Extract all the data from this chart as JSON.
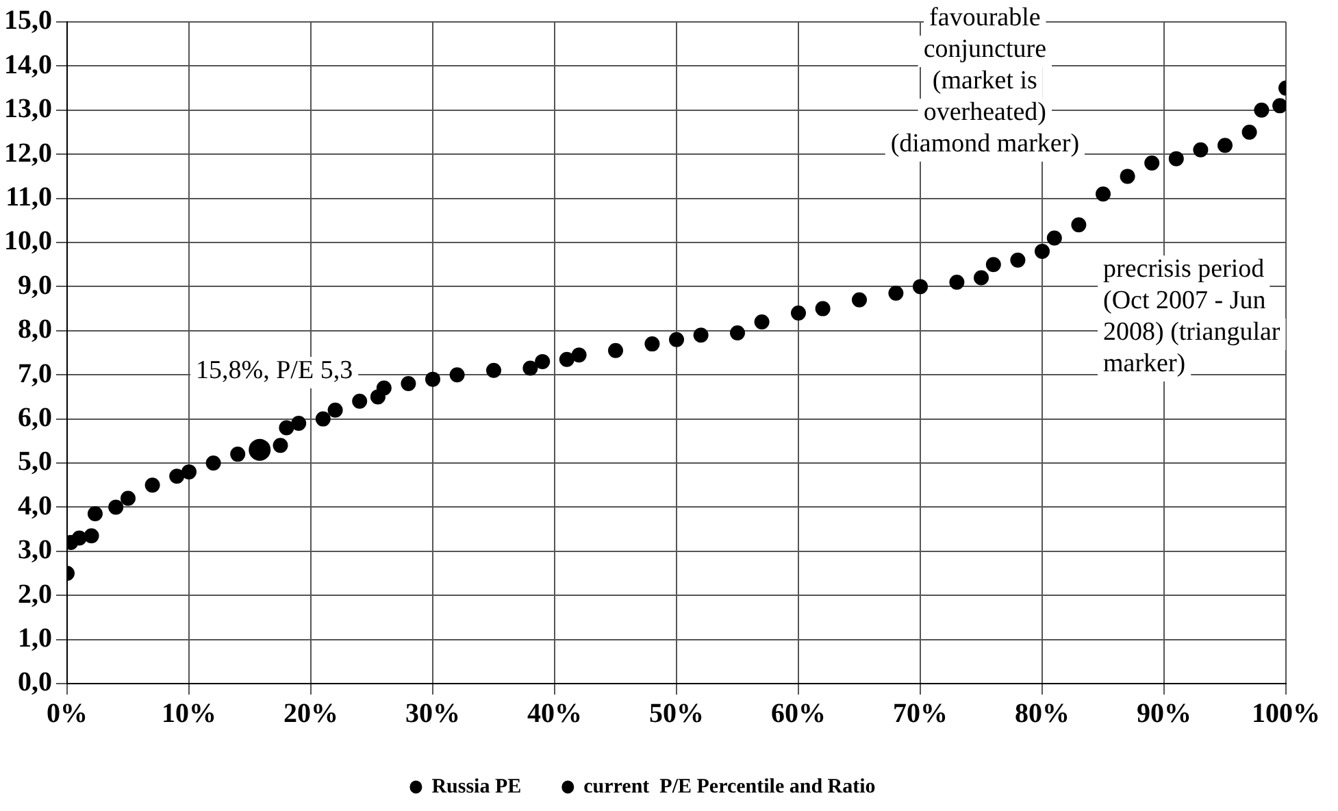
{
  "chart_data": {
    "type": "scatter",
    "xlim": [
      0,
      100
    ],
    "xticks": [
      {
        "value": 0,
        "label": "0%"
      },
      {
        "value": 10,
        "label": "10%"
      },
      {
        "value": 20,
        "label": "20%"
      },
      {
        "value": 30,
        "label": "30%"
      },
      {
        "value": 40,
        "label": "40%"
      },
      {
        "value": 50,
        "label": "50%"
      },
      {
        "value": 60,
        "label": "60%"
      },
      {
        "value": 70,
        "label": "70%"
      },
      {
        "value": 80,
        "label": "80%"
      },
      {
        "value": 90,
        "label": "90%"
      },
      {
        "value": 100,
        "label": "100%"
      }
    ],
    "ylim": [
      0,
      15
    ],
    "yticks": [
      {
        "value": 0,
        "label": "0,0"
      },
      {
        "value": 1,
        "label": "1,0"
      },
      {
        "value": 2,
        "label": "2,0"
      },
      {
        "value": 3,
        "label": "3,0"
      },
      {
        "value": 4,
        "label": "4,0"
      },
      {
        "value": 5,
        "label": "5,0"
      },
      {
        "value": 6,
        "label": "6,0"
      },
      {
        "value": 7,
        "label": "7,0"
      },
      {
        "value": 8,
        "label": "8,0"
      },
      {
        "value": 9,
        "label": "9,0"
      },
      {
        "value": 10,
        "label": "10,0"
      },
      {
        "value": 11,
        "label": "11,0"
      },
      {
        "value": 12,
        "label": "12,0"
      },
      {
        "value": 13,
        "label": "13,0"
      },
      {
        "value": 14,
        "label": "14,0"
      },
      {
        "value": 15,
        "label": "15,0"
      }
    ],
    "series": [
      {
        "name": "Russia PE",
        "color": "#000000",
        "x": [
          0,
          0.3,
          1,
          2,
          2.3,
          4,
          5,
          7,
          9,
          10,
          12,
          14,
          17.5,
          18,
          19,
          21,
          22,
          24,
          25.5,
          26,
          28,
          30,
          32,
          35,
          38,
          39,
          41,
          42,
          45,
          48,
          50,
          52,
          55,
          57,
          60,
          62,
          65,
          68,
          70,
          73,
          75,
          76,
          78,
          80,
          81,
          83,
          85,
          87,
          89,
          91,
          93,
          95,
          97,
          98,
          99.5,
          100
        ],
        "values": [
          2.5,
          3.2,
          3.3,
          3.35,
          3.85,
          4.0,
          4.2,
          4.5,
          4.7,
          4.8,
          5.0,
          5.2,
          5.4,
          5.8,
          5.9,
          6.0,
          6.2,
          6.4,
          6.5,
          6.7,
          6.8,
          6.9,
          7.0,
          7.1,
          7.15,
          7.3,
          7.35,
          7.45,
          7.55,
          7.7,
          7.8,
          7.9,
          7.95,
          8.2,
          8.4,
          8.5,
          8.7,
          8.85,
          9.0,
          9.1,
          9.2,
          9.5,
          9.6,
          9.8,
          10.1,
          10.4,
          11.1,
          11.5,
          11.8,
          11.9,
          12.1,
          12.2,
          12.5,
          13.0,
          13.1,
          13.5
        ]
      },
      {
        "name": "current  P/E Percentile and Ratio",
        "color": "#000000",
        "x": [
          15.8
        ],
        "values": [
          5.3
        ]
      }
    ],
    "annotations": [
      "15,8%, P/E 5,3",
      "favourable conjuncture (market is overheated) (diamond marker)",
      "precrisis period (Oct 2007 - Jun 2008) (triangular marker)"
    ],
    "grid": true,
    "legend": "bottom",
    "marker": "circle"
  }
}
